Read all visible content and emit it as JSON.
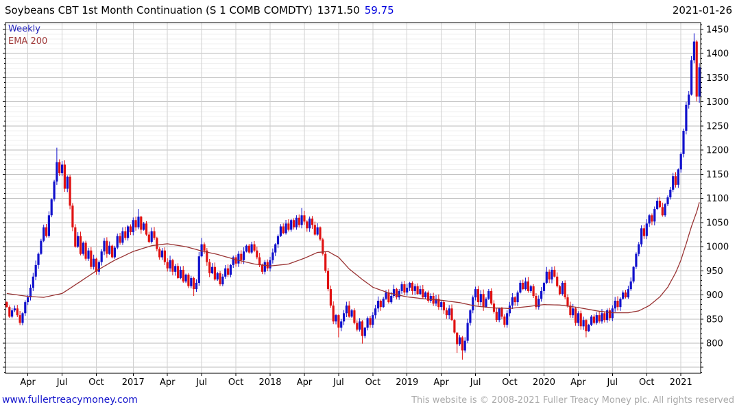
{
  "header": {
    "title": "Soybeans CBT 1st Month Continuation (S 1 COMB COMDTY)",
    "last_price": "1371.50",
    "change": "59.75",
    "date": "2021-01-26"
  },
  "legend": {
    "timeframe": "Weekly",
    "overlay": "EMA 200"
  },
  "footer": {
    "website": "www.fullertreacymoney.com",
    "copyright": "This website is © 2008-2021 Fuller Treacy Money plc. All rights reserved"
  },
  "chart_data": {
    "type": "candlestick",
    "title": "Soybeans CBT 1st Month Continuation (S 1 COMB COMDTY)",
    "timeframe": "Weekly",
    "overlay": "EMA 200",
    "last": 1371.5,
    "change": 59.75,
    "date": "2021-01-26",
    "ylim": [
      737,
      1464
    ],
    "yticks": [
      800,
      850,
      900,
      950,
      1000,
      1050,
      1100,
      1150,
      1200,
      1250,
      1300,
      1350,
      1400,
      1450
    ],
    "minor_grid_step": 10,
    "grid": "on",
    "legend_position": "top-left",
    "xticks": [
      {
        "label": "Apr",
        "i": 8
      },
      {
        "label": "Jul",
        "i": 21
      },
      {
        "label": "Oct",
        "i": 34
      },
      {
        "label": "2017",
        "i": 48
      },
      {
        "label": "Apr",
        "i": 61
      },
      {
        "label": "Jul",
        "i": 74
      },
      {
        "label": "Oct",
        "i": 87
      },
      {
        "label": "2018",
        "i": 100
      },
      {
        "label": "Apr",
        "i": 113
      },
      {
        "label": "Jul",
        "i": 126
      },
      {
        "label": "Oct",
        "i": 139
      },
      {
        "label": "2019",
        "i": 152
      },
      {
        "label": "Apr",
        "i": 165
      },
      {
        "label": "Jul",
        "i": 178
      },
      {
        "label": "Oct",
        "i": 191
      },
      {
        "label": "2020",
        "i": 204
      },
      {
        "label": "Apr",
        "i": 217
      },
      {
        "label": "Jul",
        "i": 230
      },
      {
        "label": "Oct",
        "i": 243
      },
      {
        "label": "2021",
        "i": 256
      }
    ],
    "first_open": 885,
    "closes": [
      875,
      855,
      868,
      872,
      858,
      842,
      862,
      885,
      895,
      915,
      938,
      962,
      985,
      1012,
      1040,
      1022,
      1065,
      1098,
      1135,
      1175,
      1152,
      1170,
      1120,
      1145,
      1085,
      1040,
      1000,
      1022,
      985,
      1008,
      975,
      992,
      958,
      975,
      948,
      968,
      990,
      1012,
      985,
      1002,
      978,
      998,
      1022,
      1008,
      1032,
      1018,
      1042,
      1030,
      1055,
      1040,
      1062,
      1035,
      1048,
      1025,
      1010,
      1032,
      1018,
      995,
      978,
      992,
      968,
      955,
      972,
      948,
      960,
      935,
      952,
      928,
      942,
      918,
      935,
      912,
      925,
      980,
      1005,
      992,
      968,
      945,
      958,
      932,
      945,
      922,
      938,
      955,
      942,
      962,
      978,
      965,
      985,
      972,
      990,
      1002,
      988,
      1005,
      992,
      978,
      962,
      948,
      968,
      955,
      972,
      988,
      1005,
      1022,
      1042,
      1028,
      1048,
      1035,
      1055,
      1040,
      1060,
      1045,
      1065,
      1052,
      1038,
      1058,
      1045,
      1025,
      1040,
      1015,
      985,
      950,
      912,
      878,
      845,
      858,
      832,
      845,
      862,
      878,
      855,
      868,
      842,
      828,
      845,
      815,
      832,
      852,
      838,
      858,
      872,
      888,
      875,
      892,
      905,
      885,
      898,
      912,
      895,
      908,
      922,
      905,
      915,
      925,
      908,
      918,
      902,
      912,
      895,
      905,
      888,
      898,
      882,
      892,
      875,
      885,
      868,
      858,
      872,
      848,
      822,
      798,
      812,
      785,
      805,
      842,
      868,
      895,
      912,
      885,
      902,
      875,
      892,
      908,
      882,
      865,
      848,
      872,
      855,
      838,
      862,
      878,
      895,
      885,
      905,
      925,
      912,
      928,
      908,
      918,
      898,
      875,
      892,
      908,
      925,
      948,
      932,
      952,
      938,
      918,
      902,
      925,
      895,
      878,
      858,
      872,
      842,
      862,
      835,
      848,
      825,
      838,
      855,
      842,
      858,
      845,
      862,
      848,
      868,
      852,
      872,
      888,
      875,
      892,
      905,
      895,
      912,
      928,
      958,
      985,
      1005,
      1038,
      1022,
      1048,
      1065,
      1052,
      1078,
      1095,
      1082,
      1065,
      1088,
      1102,
      1118,
      1146,
      1128,
      1160,
      1192,
      1240,
      1294,
      1315,
      1386,
      1425,
      1311,
      1371.5
    ],
    "wick_overrides": {
      "19": [
        1205,
        1128
      ],
      "50": [
        1078,
        1036
      ],
      "71": [
        938,
        898
      ],
      "74": [
        1018,
        978
      ],
      "112": [
        1080,
        1038
      ],
      "126": [
        860,
        812
      ],
      "135": [
        848,
        799
      ],
      "171": [
        822,
        780
      ],
      "173": [
        815,
        766
      ],
      "205": [
        958,
        922
      ],
      "220": [
        850,
        812
      ],
      "261": [
        1442,
        1380
      ],
      "262": [
        1428,
        1301
      ],
      "263": [
        1380,
        1298
      ]
    },
    "ema_period": 200,
    "ema_anchors": [
      [
        0,
        903
      ],
      [
        8,
        897
      ],
      [
        14,
        895
      ],
      [
        21,
        903
      ],
      [
        28,
        928
      ],
      [
        34,
        950
      ],
      [
        41,
        972
      ],
      [
        48,
        990
      ],
      [
        55,
        1002
      ],
      [
        61,
        1006
      ],
      [
        68,
        1000
      ],
      [
        74,
        991
      ],
      [
        80,
        984
      ],
      [
        87,
        973
      ],
      [
        94,
        964
      ],
      [
        100,
        960
      ],
      [
        107,
        964
      ],
      [
        113,
        976
      ],
      [
        118,
        988
      ],
      [
        122,
        990
      ],
      [
        126,
        978
      ],
      [
        130,
        954
      ],
      [
        135,
        932
      ],
      [
        139,
        916
      ],
      [
        145,
        904
      ],
      [
        152,
        896
      ],
      [
        160,
        891
      ],
      [
        165,
        889
      ],
      [
        172,
        884
      ],
      [
        178,
        877
      ],
      [
        185,
        873
      ],
      [
        191,
        872
      ],
      [
        198,
        876
      ],
      [
        204,
        880
      ],
      [
        210,
        879
      ],
      [
        217,
        874
      ],
      [
        224,
        867
      ],
      [
        230,
        863
      ],
      [
        236,
        863
      ],
      [
        240,
        867
      ],
      [
        244,
        878
      ],
      [
        248,
        896
      ],
      [
        251,
        916
      ],
      [
        254,
        946
      ],
      [
        256,
        972
      ],
      [
        258,
        1006
      ],
      [
        260,
        1042
      ],
      [
        262,
        1072
      ],
      [
        263,
        1092
      ]
    ],
    "colors": {
      "up": "#1111cc",
      "down": "#e01111",
      "ema": "#993333",
      "grid_major": "#bbbbbb",
      "grid_minor": "#efefef",
      "grid_vert": "#cfcfcf",
      "border": "#000000",
      "axis_text": "#000000",
      "change_text": "#0000dd",
      "legend_timeframe": "#2222bb",
      "legend_ema": "#a03a3a",
      "site_link": "#1414cc",
      "copyright_text": "#a9a9a9"
    }
  }
}
